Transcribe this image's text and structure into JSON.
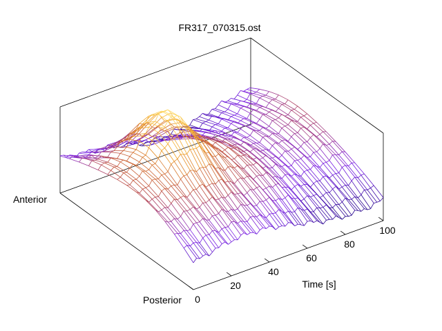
{
  "chart_data": {
    "type": "surface",
    "title": "FR317_070315.ost",
    "xlabel": "Time [s]",
    "ylabel_left": "Anterior",
    "ylabel_right": "Posterior",
    "x_range": [
      0,
      100
    ],
    "x_ticks": [
      "0",
      "20",
      "40",
      "60",
      "80",
      "100"
    ],
    "y_range": [
      0,
      1
    ],
    "z_range": [
      0,
      1
    ],
    "grid": false,
    "colormap": [
      "#1a0080",
      "#7a1fe8",
      "#c0503a",
      "#f0a020",
      "#ffe070"
    ],
    "surface": {
      "rows": 14,
      "cols": 60,
      "peak_time": 30,
      "peak_position": 0.62,
      "peak_height": 0.95
    }
  }
}
